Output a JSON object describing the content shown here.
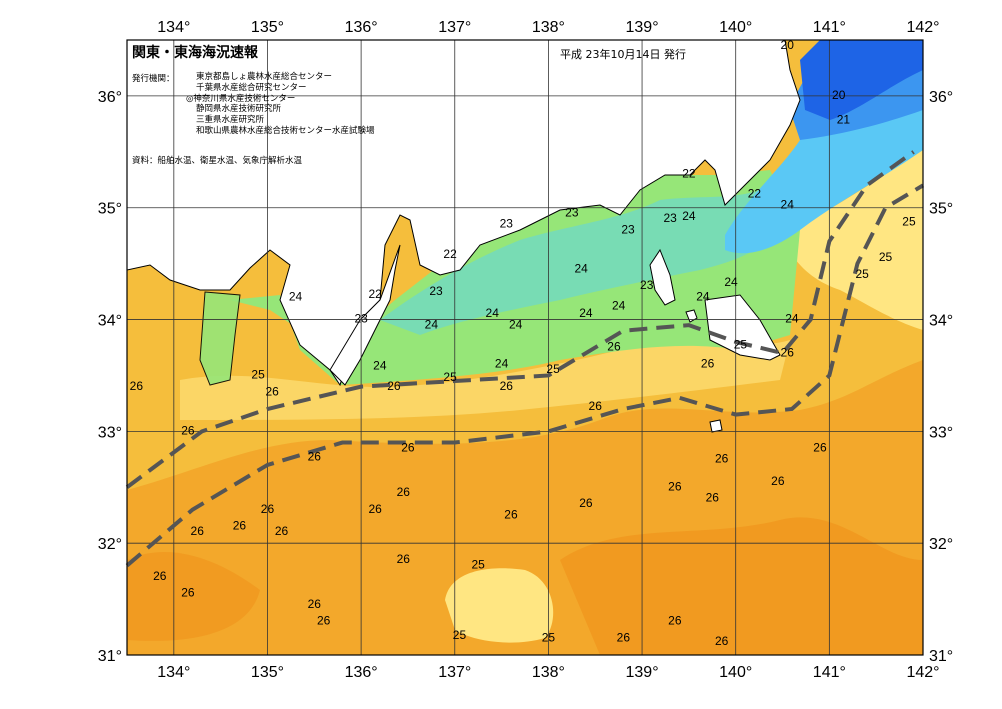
{
  "header": {
    "title": "関東・東海海況速報",
    "issued": "平成 23年10月14日 発行",
    "issuer_label": "発行機関：",
    "organizations": [
      "東京都島しょ農林水産総合センター",
      "千葉県水産総合研究センター",
      "◎神奈川県水産技術センター",
      "静岡県水産技術研究所",
      "三重県水産研究所",
      "和歌山県農林水産総合技術センター水産試験場"
    ],
    "source": "資料：船舶水温、衛星水温、気象庁解析水温"
  },
  "map": {
    "lon_range": [
      133.5,
      142.0
    ],
    "lat_range": [
      31.0,
      36.5
    ],
    "lon_ticks": [
      "134°",
      "135°",
      "136°",
      "137°",
      "138°",
      "139°",
      "140°",
      "141°",
      "142°"
    ],
    "lat_ticks": [
      "36°",
      "35°",
      "34°",
      "33°",
      "32°",
      "31°"
    ],
    "colors": {
      "land": "#ffffff",
      "t20": "#1e64e6",
      "t21": "#3c96f0",
      "t22": "#5ac8f5",
      "t23": "#78dcb4",
      "t24": "#96e678",
      "t25": "#ffe682",
      "t26": "#f5be3c",
      "t27": "#f0961e",
      "grid": "#333333",
      "kuroshio": "#555555"
    },
    "kuroshio_axis": [
      [
        [
          133.5,
          32.5
        ],
        [
          134.3,
          33.0
        ],
        [
          135.0,
          33.2
        ],
        [
          136.0,
          33.4
        ],
        [
          137.0,
          33.45
        ],
        [
          138.0,
          33.5
        ],
        [
          138.8,
          33.9
        ],
        [
          139.5,
          33.95
        ],
        [
          140.0,
          33.8
        ],
        [
          140.5,
          33.7
        ],
        [
          140.8,
          34.0
        ],
        [
          141.0,
          34.7
        ],
        [
          141.4,
          35.2
        ],
        [
          141.9,
          35.5
        ]
      ],
      [
        [
          133.5,
          31.8
        ],
        [
          134.2,
          32.3
        ],
        [
          135.0,
          32.7
        ],
        [
          135.8,
          32.9
        ],
        [
          137.0,
          32.9
        ],
        [
          138.0,
          33.0
        ],
        [
          138.8,
          33.2
        ],
        [
          139.4,
          33.3
        ],
        [
          140.0,
          33.15
        ],
        [
          140.6,
          33.2
        ],
        [
          141.0,
          33.5
        ],
        [
          141.3,
          34.5
        ],
        [
          141.6,
          35.0
        ],
        [
          142.0,
          35.2
        ]
      ]
    ],
    "contour_labels": [
      {
        "text": "20",
        "lon": 140.55,
        "lat": 36.45
      },
      {
        "text": "20",
        "lon": 141.1,
        "lat": 36.0
      },
      {
        "text": "21",
        "lon": 141.15,
        "lat": 35.78
      },
      {
        "text": "22",
        "lon": 139.5,
        "lat": 35.3
      },
      {
        "text": "22",
        "lon": 140.2,
        "lat": 35.12
      },
      {
        "text": "24",
        "lon": 140.55,
        "lat": 35.02
      },
      {
        "text": "25",
        "lon": 141.85,
        "lat": 34.87
      },
      {
        "text": "25",
        "lon": 141.6,
        "lat": 34.55
      },
      {
        "text": "25",
        "lon": 141.35,
        "lat": 34.4
      },
      {
        "text": "23",
        "lon": 137.55,
        "lat": 34.85
      },
      {
        "text": "23",
        "lon": 138.25,
        "lat": 34.95
      },
      {
        "text": "23",
        "lon": 138.85,
        "lat": 34.8
      },
      {
        "text": "23",
        "lon": 139.3,
        "lat": 34.9
      },
      {
        "text": "24",
        "lon": 139.5,
        "lat": 34.92
      },
      {
        "text": "22",
        "lon": 136.95,
        "lat": 34.58
      },
      {
        "text": "23",
        "lon": 136.8,
        "lat": 34.25
      },
      {
        "text": "22",
        "lon": 136.15,
        "lat": 34.22
      },
      {
        "text": "23",
        "lon": 136.0,
        "lat": 34.0
      },
      {
        "text": "24",
        "lon": 135.3,
        "lat": 34.2
      },
      {
        "text": "24",
        "lon": 137.4,
        "lat": 34.05
      },
      {
        "text": "24",
        "lon": 137.65,
        "lat": 33.95
      },
      {
        "text": "24",
        "lon": 136.75,
        "lat": 33.95
      },
      {
        "text": "24",
        "lon": 138.35,
        "lat": 34.45
      },
      {
        "text": "24",
        "lon": 138.4,
        "lat": 34.05
      },
      {
        "text": "24",
        "lon": 138.75,
        "lat": 34.12
      },
      {
        "text": "23",
        "lon": 139.05,
        "lat": 34.3
      },
      {
        "text": "24",
        "lon": 139.65,
        "lat": 34.2
      },
      {
        "text": "24",
        "lon": 139.95,
        "lat": 34.33
      },
      {
        "text": "24",
        "lon": 140.6,
        "lat": 34.0
      },
      {
        "text": "25",
        "lon": 140.05,
        "lat": 33.77
      },
      {
        "text": "26",
        "lon": 140.55,
        "lat": 33.7
      },
      {
        "text": "26",
        "lon": 138.7,
        "lat": 33.75
      },
      {
        "text": "26",
        "lon": 139.7,
        "lat": 33.6
      },
      {
        "text": "25",
        "lon": 138.05,
        "lat": 33.55
      },
      {
        "text": "24",
        "lon": 137.5,
        "lat": 33.6
      },
      {
        "text": "24",
        "lon": 136.2,
        "lat": 33.58
      },
      {
        "text": "25",
        "lon": 136.95,
        "lat": 33.48
      },
      {
        "text": "26",
        "lon": 137.55,
        "lat": 33.4
      },
      {
        "text": "26",
        "lon": 136.35,
        "lat": 33.4
      },
      {
        "text": "25",
        "lon": 134.9,
        "lat": 33.5
      },
      {
        "text": "26",
        "lon": 135.05,
        "lat": 33.35
      },
      {
        "text": "26",
        "lon": 133.6,
        "lat": 33.4
      },
      {
        "text": "26",
        "lon": 134.15,
        "lat": 33.0
      },
      {
        "text": "26",
        "lon": 138.5,
        "lat": 33.22
      },
      {
        "text": "26",
        "lon": 135.5,
        "lat": 32.77
      },
      {
        "text": "26",
        "lon": 136.5,
        "lat": 32.85
      },
      {
        "text": "26",
        "lon": 139.85,
        "lat": 32.75
      },
      {
        "text": "26",
        "lon": 140.9,
        "lat": 32.85
      },
      {
        "text": "26",
        "lon": 136.45,
        "lat": 32.45
      },
      {
        "text": "26",
        "lon": 139.35,
        "lat": 32.5
      },
      {
        "text": "26",
        "lon": 139.75,
        "lat": 32.4
      },
      {
        "text": "26",
        "lon": 140.45,
        "lat": 32.55
      },
      {
        "text": "26",
        "lon": 135.0,
        "lat": 32.3
      },
      {
        "text": "26",
        "lon": 136.15,
        "lat": 32.3
      },
      {
        "text": "26",
        "lon": 137.6,
        "lat": 32.25
      },
      {
        "text": "26",
        "lon": 138.4,
        "lat": 32.35
      },
      {
        "text": "26",
        "lon": 134.7,
        "lat": 32.15
      },
      {
        "text": "26",
        "lon": 135.15,
        "lat": 32.1
      },
      {
        "text": "26",
        "lon": 134.25,
        "lat": 32.1
      },
      {
        "text": "26",
        "lon": 136.45,
        "lat": 31.85
      },
      {
        "text": "25",
        "lon": 137.25,
        "lat": 31.8
      },
      {
        "text": "26",
        "lon": 133.85,
        "lat": 31.7
      },
      {
        "text": "26",
        "lon": 134.15,
        "lat": 31.55
      },
      {
        "text": "26",
        "lon": 135.5,
        "lat": 31.45
      },
      {
        "text": "26",
        "lon": 135.6,
        "lat": 31.3
      },
      {
        "text": "25",
        "lon": 137.05,
        "lat": 31.17
      },
      {
        "text": "25",
        "lon": 138.0,
        "lat": 31.15
      },
      {
        "text": "26",
        "lon": 138.8,
        "lat": 31.15
      },
      {
        "text": "26",
        "lon": 139.35,
        "lat": 31.3
      },
      {
        "text": "26",
        "lon": 139.85,
        "lat": 31.12
      }
    ]
  }
}
